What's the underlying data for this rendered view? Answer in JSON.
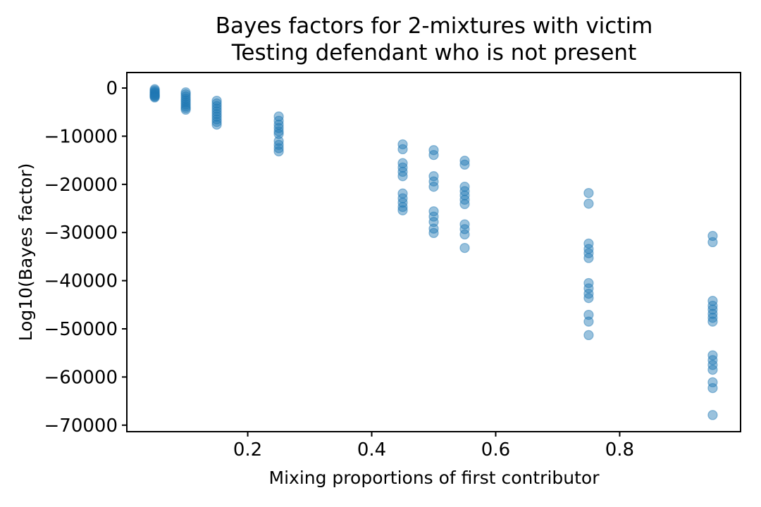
{
  "chart_data": {
    "type": "scatter",
    "title": "Bayes factors for 2-mixtures with victim",
    "subtitle": "Testing defendant who is not present",
    "xlabel": "Mixing proportions of first contributor",
    "ylabel": "Log10(Bayes factor)",
    "xlim": [
      0.005,
      0.995
    ],
    "ylim": [
      -71350,
      3220
    ],
    "grid": false,
    "legend": null,
    "xticks": {
      "values": [
        0.2,
        0.4,
        0.6,
        0.8
      ],
      "labels": [
        "0.2",
        "0.4",
        "0.6",
        "0.8"
      ]
    },
    "yticks": {
      "values": [
        0,
        -10000,
        -20000,
        -30000,
        -40000,
        -50000,
        -60000,
        -70000
      ],
      "labels": [
        "0",
        "−10000",
        "−20000",
        "−30000",
        "−40000",
        "−50000",
        "−60000",
        "−70000"
      ]
    },
    "marker": {
      "shape": "circle",
      "color": "#1f77b4",
      "alpha": 0.45,
      "radius": 6.5
    },
    "frame_color": "#000000",
    "series": [
      {
        "x": 0.05,
        "y": [
          -250,
          -500,
          -750,
          -950,
          -1150,
          -1350,
          -1500,
          -1650,
          -1800,
          -1950
        ]
      },
      {
        "x": 0.1,
        "y": [
          -900,
          -1300,
          -1750,
          -2200,
          -2600,
          -3000,
          -3400,
          -3800,
          -4150,
          -4500
        ]
      },
      {
        "x": 0.15,
        "y": [
          -2650,
          -3200,
          -3750,
          -4300,
          -4850,
          -5400,
          -5950,
          -6500,
          -7050,
          -7600
        ]
      },
      {
        "x": 0.25,
        "y": [
          -5900,
          -6800,
          -7600,
          -8300,
          -9000,
          -9550,
          -11000,
          -11800,
          -12500,
          -13150
        ]
      },
      {
        "x": 0.45,
        "y": [
          -11700,
          -12700,
          -15600,
          -16500,
          -17400,
          -18300,
          -21900,
          -22900,
          -23800,
          -24700,
          -25400
        ]
      },
      {
        "x": 0.5,
        "y": [
          -12900,
          -13900,
          -18300,
          -19400,
          -20500,
          -25600,
          -26700,
          -27800,
          -29200,
          -30100
        ]
      },
      {
        "x": 0.55,
        "y": [
          -15100,
          -15900,
          -20500,
          -21400,
          -22300,
          -23200,
          -24100,
          -28300,
          -29300,
          -30400,
          -33200
        ]
      },
      {
        "x": 0.75,
        "y": [
          -21800,
          -24000,
          -32300,
          -33400,
          -34300,
          -35300,
          -40500,
          -41600,
          -42700,
          -43600,
          -47100,
          -48500,
          -51300
        ]
      },
      {
        "x": 0.95,
        "y": [
          -30700,
          -32000,
          -44200,
          -45200,
          -46000,
          -46900,
          -47700,
          -48500,
          -55500,
          -56500,
          -57500,
          -58500,
          -61100,
          -62300,
          -67900
        ]
      }
    ]
  }
}
